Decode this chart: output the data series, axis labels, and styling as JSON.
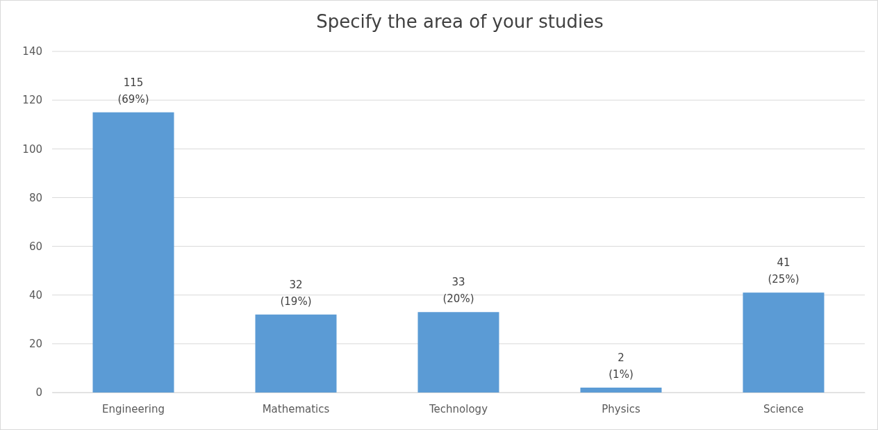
{
  "chart_data": {
    "type": "bar",
    "title": "Specify the area of your studies",
    "categories": [
      "Engineering",
      "Mathematics",
      "Technology",
      "Physics",
      "Science"
    ],
    "values": [
      115,
      32,
      33,
      2,
      41
    ],
    "color": "#5b9bd5",
    "value_labels": [
      "115\n(69%)",
      "32\n(19%)",
      "33\n(20%)",
      "2\n(1%)",
      "41\n(25%)"
    ],
    "ylim": [
      0,
      140
    ],
    "yticks": [
      0,
      20,
      40,
      60,
      80,
      100,
      120,
      140
    ],
    "grid": "y"
  }
}
